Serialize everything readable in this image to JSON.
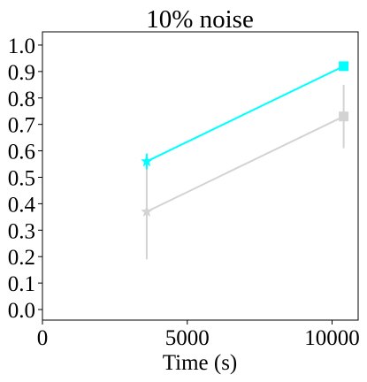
{
  "chart_data": {
    "type": "line",
    "title": "10% noise",
    "xlabel": "Time (s)",
    "ylabel": "",
    "xlim": [
      0,
      10900
    ],
    "ylim": [
      -0.04,
      1.05
    ],
    "xticks": [
      0,
      5000,
      10000
    ],
    "yticks": [
      0.0,
      0.1,
      0.2,
      0.3,
      0.4,
      0.5,
      0.6,
      0.7,
      0.8,
      0.9,
      1.0
    ],
    "grid": false,
    "series": [
      {
        "color": "#00ffff",
        "points": [
          {
            "x": 3600,
            "y": 0.56,
            "err": 0.03,
            "marker": "star"
          },
          {
            "x": 10400,
            "y": 0.92,
            "err": 0.0,
            "marker": "square"
          }
        ]
      },
      {
        "color": "#d3d3d3",
        "points": [
          {
            "x": 3600,
            "y": 0.37,
            "err": 0.18,
            "marker": "star"
          },
          {
            "x": 10400,
            "y": 0.73,
            "err": 0.12,
            "marker": "square"
          }
        ]
      }
    ]
  }
}
